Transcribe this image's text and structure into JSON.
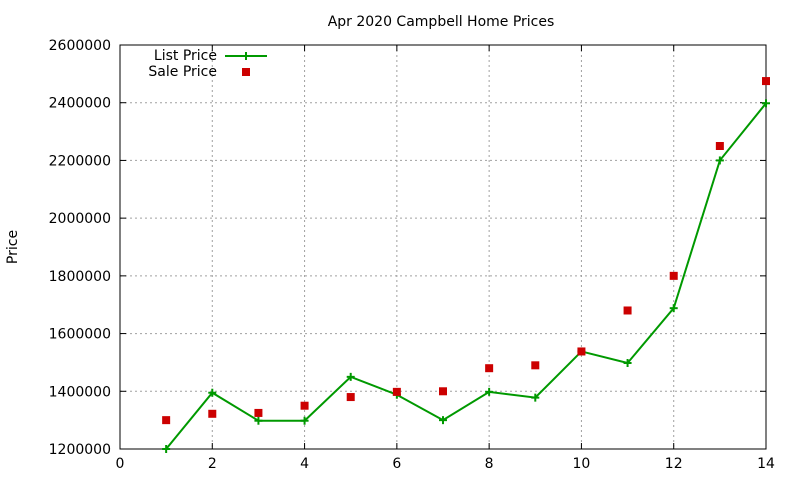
{
  "chart_data": {
    "type": "line",
    "title": "Apr 2020 Campbell Home Prices",
    "xlabel": "",
    "ylabel": "Price",
    "xlim": [
      0,
      14
    ],
    "ylim": [
      1200000,
      2600000
    ],
    "x_ticks": [
      0,
      2,
      4,
      6,
      8,
      10,
      12,
      14
    ],
    "y_ticks": [
      1200000,
      1400000,
      1600000,
      1800000,
      2000000,
      2200000,
      2400000,
      2600000
    ],
    "grid": true,
    "legend_position": "top-left",
    "series": [
      {
        "name": "List Price",
        "style": "line+plus",
        "color": "#009900",
        "x": [
          1,
          2,
          3,
          4,
          5,
          6,
          7,
          8,
          9,
          10,
          11,
          12,
          13,
          14
        ],
        "y": [
          1200000,
          1395000,
          1298000,
          1298000,
          1450000,
          1388000,
          1300000,
          1398000,
          1378000,
          1538000,
          1498000,
          1688000,
          2200000,
          2398000
        ]
      },
      {
        "name": "Sale Price",
        "style": "square-points",
        "color": "#cc0000",
        "x": [
          1,
          2,
          3,
          4,
          5,
          6,
          7,
          8,
          9,
          10,
          11,
          12,
          13,
          14
        ],
        "y": [
          1300000,
          1322000,
          1325000,
          1350000,
          1380000,
          1398000,
          1400000,
          1480000,
          1490000,
          1538000,
          1680000,
          1800000,
          2250000,
          2475000
        ]
      }
    ]
  }
}
